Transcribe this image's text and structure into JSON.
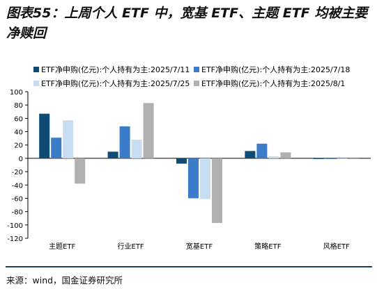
{
  "title": "图表55：上周个人 ETF 中，宽基 ETF、主题 ETF 均被主要净赎回",
  "source": "来源：wind，国金证券研究所",
  "colors": {
    "series": [
      "#0f4c75",
      "#3d7cc9",
      "#c9ddf2",
      "#b0b0b0"
    ],
    "axis": "#000000",
    "rule": "#1e3a66"
  },
  "chart_data": {
    "type": "bar",
    "categories": [
      "主题ETF",
      "行业ETF",
      "宽基ETF",
      "策略ETF",
      "风格ETF"
    ],
    "series": [
      {
        "name": "ETF净申购(亿元):个人持有为主:2025/7/11",
        "values": [
          67,
          10,
          -8,
          11,
          -1
        ]
      },
      {
        "name": "ETF净申购(亿元):个人持有为主:2025/7/18",
        "values": [
          31,
          48,
          -60,
          22,
          -1
        ]
      },
      {
        "name": "ETF净申购(亿元):个人持有为主:2025/7/25",
        "values": [
          57,
          28,
          -61,
          3,
          0
        ]
      },
      {
        "name": "ETF净申购(亿元):个人持有为主:2025/8/1",
        "values": [
          -38,
          83,
          -97,
          9,
          -1
        ]
      }
    ],
    "yticks": [
      100,
      80,
      60,
      40,
      20,
      0,
      -20,
      -40,
      -60,
      -80,
      -100,
      -120
    ],
    "ylim": [
      -120,
      100
    ],
    "legend_position": "top",
    "grid": false
  }
}
